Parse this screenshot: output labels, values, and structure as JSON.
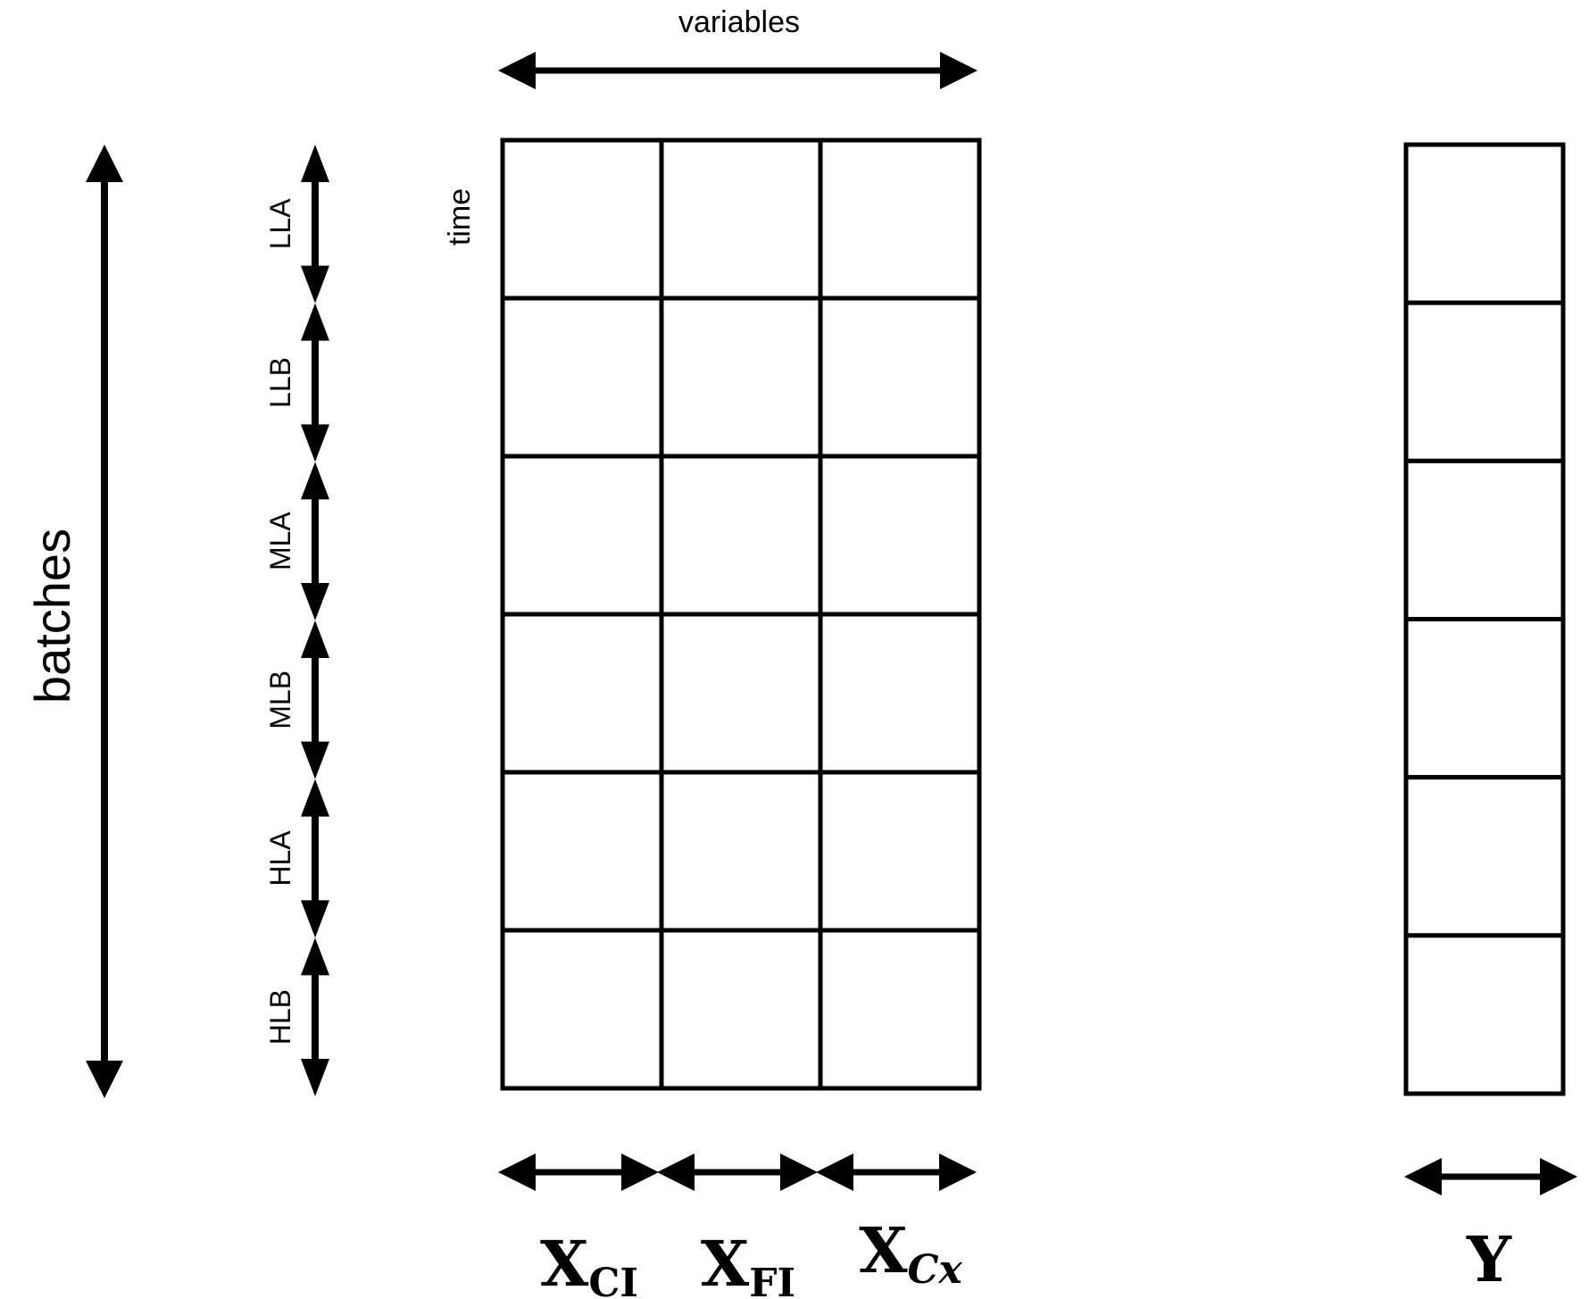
{
  "labels": {
    "variables": "variables",
    "time": "time",
    "batches": "batches"
  },
  "segments": [
    "LLA",
    "LLB",
    "MLA",
    "MLB",
    "HLA",
    "HLB"
  ],
  "x_matrix": {
    "columns": [
      {
        "base": "X",
        "sub": "CI",
        "sub_italic": false
      },
      {
        "base": "X",
        "sub": "FI",
        "sub_italic": false
      },
      {
        "base": "X",
        "sub": "Cx",
        "sub_italic": true
      }
    ],
    "rows": 6
  },
  "y_matrix": {
    "label": "Y",
    "rows": 6
  },
  "colors": {
    "stroke": "#000000",
    "background": "#ffffff"
  }
}
